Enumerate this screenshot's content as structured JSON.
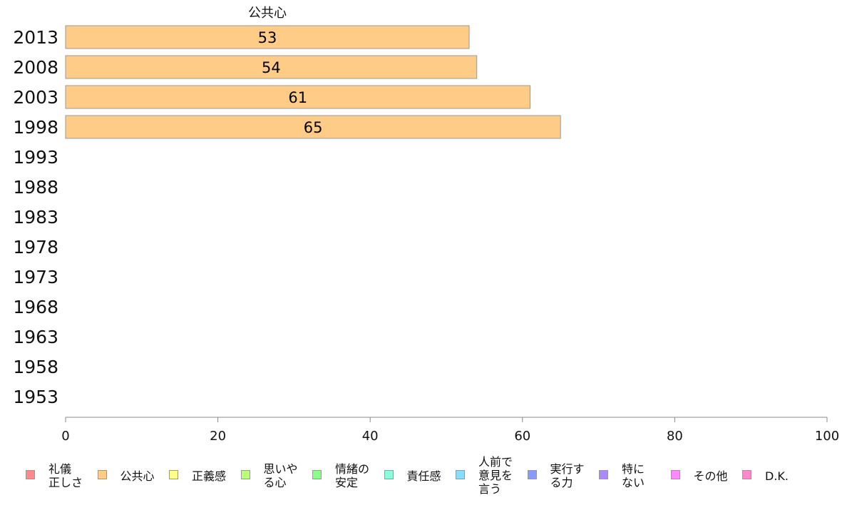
{
  "chart_data": {
    "type": "bar",
    "orientation": "horizontal",
    "title": "公共心",
    "categories": [
      "2013",
      "2008",
      "2003",
      "1998",
      "1993",
      "1988",
      "1983",
      "1978",
      "1973",
      "1968",
      "1963",
      "1958",
      "1953"
    ],
    "series": [
      {
        "name": "公共心",
        "color": "#FFCC88",
        "values": [
          53,
          54,
          61,
          65,
          null,
          null,
          null,
          null,
          null,
          null,
          null,
          null,
          null
        ]
      }
    ],
    "data_labels": [
      "53",
      "54",
      "61",
      "65"
    ],
    "xlim": [
      0,
      100
    ],
    "xticks": [
      "0",
      "20",
      "40",
      "60",
      "80",
      "100"
    ],
    "grid": false,
    "legend_position": "bottom"
  },
  "legend": [
    {
      "label": "礼儀\n正しさ",
      "color": "#FF8888"
    },
    {
      "label": "公共心",
      "color": "#FFCC88"
    },
    {
      "label": "正義感",
      "color": "#FFFF88"
    },
    {
      "label": "思いや\nる心",
      "color": "#BBFF77"
    },
    {
      "label": "情緒の\n安定",
      "color": "#88FF88"
    },
    {
      "label": "責任感",
      "color": "#88FFDD"
    },
    {
      "label": "人前で\n意見を\n言う",
      "color": "#88DDFF"
    },
    {
      "label": "実行す\nる力",
      "color": "#8899FF"
    },
    {
      "label": "特に\nない",
      "color": "#AA88FF"
    },
    {
      "label": "その他",
      "color": "#FF88FF"
    },
    {
      "label": "D.K.",
      "color": "#FF88CC"
    }
  ]
}
